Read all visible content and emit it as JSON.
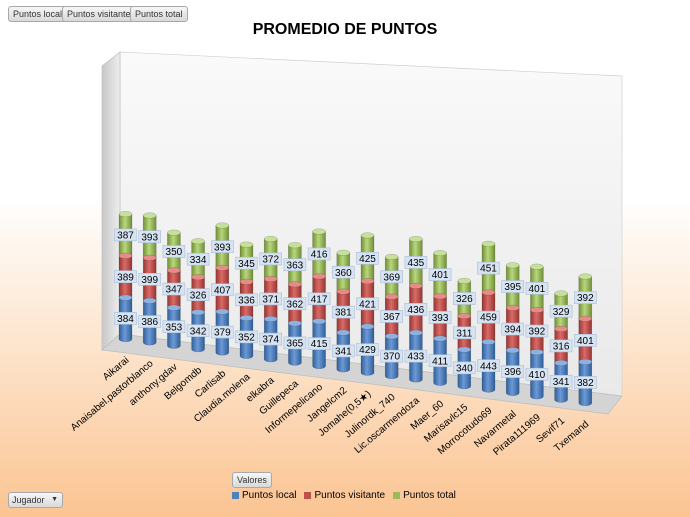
{
  "filter_chips": [
    "Puntos local",
    "Puntos visitante",
    "Puntos total"
  ],
  "valores_chip": "Valores",
  "jugador_dropdown": "Jugador",
  "colors": {
    "local": "#4f81bd",
    "visitante": "#c0504d",
    "total": "#9bbb59"
  },
  "chart_data": {
    "type": "bar",
    "stacked": true,
    "title": "PROMEDIO DE PUNTOS",
    "categories": [
      "Aikarai",
      "Anaisabel.pastorblanco",
      "anthony.gdav",
      "Belgomdb",
      "Carlisab",
      "Claudia.molena",
      "elkabra",
      "Guillepeca",
      "Informepelicano",
      "Jangelcm2",
      "Jomahe(0,5★)",
      "Julinordk_740",
      "Lic.oscarmendoza",
      "Maer_60",
      "Marisavlc15",
      "Morrocotudo69",
      "Navarmetal",
      "Pirata111969",
      "Sevif71",
      "Txemand"
    ],
    "series": [
      {
        "name": "Puntos local",
        "values": [
          384,
          386,
          353,
          342,
          379,
          352,
          374,
          365,
          415,
          341,
          429,
          370,
          433,
          411,
          340,
          443,
          396,
          410,
          341,
          382
        ]
      },
      {
        "name": "Puntos visitante",
        "values": [
          389,
          399,
          347,
          326,
          407,
          336,
          371,
          362,
          417,
          381,
          421,
          367,
          436,
          393,
          311,
          459,
          394,
          392,
          316,
          401
        ]
      },
      {
        "name": "Puntos total",
        "values": [
          387,
          393,
          350,
          334,
          393,
          345,
          372,
          363,
          416,
          360,
          425,
          369,
          435,
          401,
          326,
          451,
          395,
          401,
          329,
          392
        ]
      }
    ],
    "legend": "bottom",
    "xlabel": "",
    "ylabel": ""
  }
}
